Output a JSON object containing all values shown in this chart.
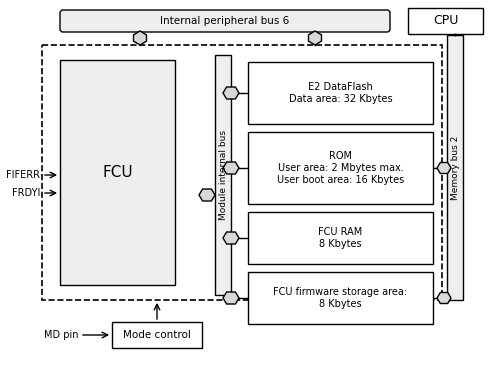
{
  "bg_color": "#ffffff",
  "internal_bus_label": "Internal peripheral bus 6",
  "cpu_label": "CPU",
  "fcu_label": "FCU",
  "module_bus_label": "Module internal bus",
  "memory_bus_label": "Memory bus 2",
  "fiferr_label": "FIFERR",
  "frdyi_label": "FRDYI",
  "md_pin_label": "MD pin",
  "mode_control_label": "Mode control",
  "memory_boxes": [
    {
      "label": "E2 DataFlash\nData area: 32 Kbytes"
    },
    {
      "label": "ROM\nUser area: 2 Mbytes max.\nUser boot area: 16 Kbytes"
    },
    {
      "label": "FCU RAM\n8 Kbytes"
    },
    {
      "label": "FCU firmware storage area:\n8 Kbytes"
    }
  ],
  "line_color": "#000000",
  "box_fill": "#eeeeee",
  "white_fill": "#ffffff"
}
